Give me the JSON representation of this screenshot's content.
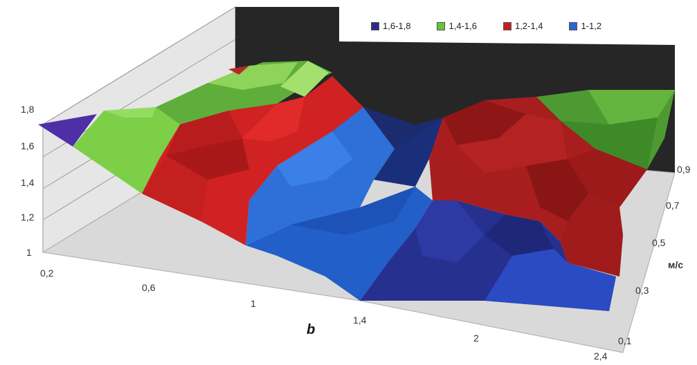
{
  "chart_data": {
    "type": "surface-3d",
    "caption": "b",
    "z_ticks": [
      "1",
      "1,2",
      "1,4",
      "1,6",
      "1,8"
    ],
    "x_ticks": [
      "0,2",
      "0,6",
      "1",
      "1,4",
      "2",
      "2,4"
    ],
    "y_ticks": [
      "0,1",
      "0,3",
      "0,5",
      "0,7",
      "0,9"
    ],
    "y_unit": "м/с",
    "legend": [
      {
        "label": "1,6-1,8",
        "color": "#2e2a8a"
      },
      {
        "label": "1,4-1,6",
        "color": "#6cc23a"
      },
      {
        "label": "1,2-1,4",
        "color": "#c61e1e"
      },
      {
        "label": "1-1,2",
        "color": "#2c64d0"
      }
    ],
    "zlim": [
      1,
      1.8
    ],
    "back_wall_color": "#222222",
    "floor_color": "#d9d9d9",
    "grid": true
  }
}
